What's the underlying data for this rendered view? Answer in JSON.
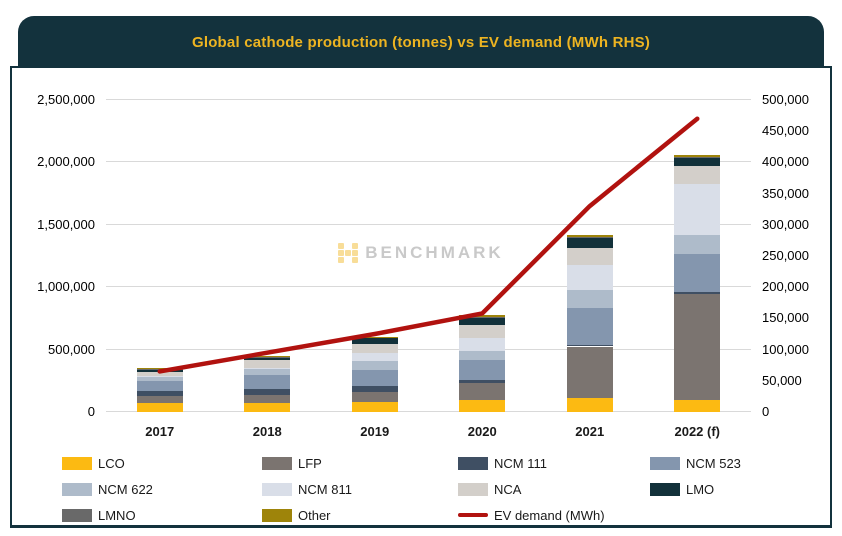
{
  "title": "Global cathode production (tonnes) vs EV demand (MWh RHS)",
  "watermark": {
    "brand": "BENCHMARK",
    "logo_icon": "benchmark-dots-logo",
    "logo_color": "#f0b41c"
  },
  "colors": {
    "title_bar_bg": "#13323d",
    "title_text": "#edb421",
    "frame_border": "#13323d",
    "gridline": "#d9d9d9",
    "axis_text": "#000000"
  },
  "chart_data": {
    "type": "bar",
    "subtype": "stacked-bar-with-line-overlay",
    "title": "Global cathode production (tonnes) vs EV demand (MWh RHS)",
    "categories": [
      "2017",
      "2018",
      "2019",
      "2020",
      "2021",
      "2022 (f)"
    ],
    "series": [
      {
        "name": "LCO",
        "color": "#fcba12",
        "values": [
          75000,
          75000,
          80000,
          100000,
          110000,
          95000
        ]
      },
      {
        "name": "LFP",
        "color": "#7b7470",
        "values": [
          55000,
          65000,
          80000,
          130000,
          415000,
          850000
        ]
      },
      {
        "name": "NCM 111",
        "color": "#3f4f63",
        "values": [
          40000,
          45000,
          50000,
          30000,
          15000,
          20000
        ]
      },
      {
        "name": "NCM 523",
        "color": "#8496ae",
        "values": [
          75000,
          110000,
          130000,
          160000,
          290000,
          305000
        ]
      },
      {
        "name": "NCM 622",
        "color": "#aebbca",
        "values": [
          40000,
          50000,
          70000,
          70000,
          145000,
          145000
        ]
      },
      {
        "name": "NCM 811",
        "color": "#d9dee8",
        "values": [
          5000,
          10000,
          60000,
          100000,
          200000,
          415000
        ]
      },
      {
        "name": "NCA",
        "color": "#d3cfca",
        "values": [
          30000,
          60000,
          75000,
          105000,
          140000,
          145000
        ]
      },
      {
        "name": "LMO",
        "color": "#12313a",
        "values": [
          25000,
          25000,
          50000,
          65000,
          80000,
          65000
        ]
      },
      {
        "name": "LMNO",
        "color": "#696969",
        "values": [
          2000,
          2000,
          5000,
          5000,
          10000,
          5000
        ]
      },
      {
        "name": "Other",
        "color": "#9e840a",
        "values": [
          3000,
          3000,
          5000,
          10000,
          10000,
          15000
        ]
      }
    ],
    "line_series": {
      "name": "EV demand (MWh)",
      "color": "#b1120f",
      "values": [
        65000,
        95000,
        125000,
        158000,
        330000,
        470000
      ]
    },
    "left_axis": {
      "min": 0,
      "max": 2500000,
      "step": 500000,
      "tick_labels": [
        "0",
        "500,000",
        "1,000,000",
        "1,500,000",
        "2,000,000",
        "2,500,000"
      ]
    },
    "right_axis": {
      "min": 0,
      "max": 500000,
      "step": 50000,
      "tick_labels": [
        "0",
        "50,000",
        "100,000",
        "150,000",
        "200,000",
        "250,000",
        "300,000",
        "350,000",
        "400,000",
        "450,000",
        "500,000"
      ]
    },
    "grid": "horizontal-major-only",
    "legend": {
      "position": "bottom",
      "items": [
        {
          "label": "LCO",
          "color": "#fcba12",
          "swatch": "box"
        },
        {
          "label": "LFP",
          "color": "#7b7470",
          "swatch": "box"
        },
        {
          "label": "NCM 111",
          "color": "#3f4f63",
          "swatch": "box"
        },
        {
          "label": "NCM 523",
          "color": "#8496ae",
          "swatch": "box"
        },
        {
          "label": "NCM 622",
          "color": "#aebbca",
          "swatch": "box"
        },
        {
          "label": "NCM 811",
          "color": "#d9dee8",
          "swatch": "box"
        },
        {
          "label": "NCA",
          "color": "#d3cfca",
          "swatch": "box"
        },
        {
          "label": "LMO",
          "color": "#12313a",
          "swatch": "box"
        },
        {
          "label": "LMNO",
          "color": "#696969",
          "swatch": "box"
        },
        {
          "label": "Other",
          "color": "#9e840a",
          "swatch": "box"
        },
        {
          "label": "EV demand (MWh)",
          "color": "#b1120f",
          "swatch": "line"
        }
      ]
    }
  }
}
